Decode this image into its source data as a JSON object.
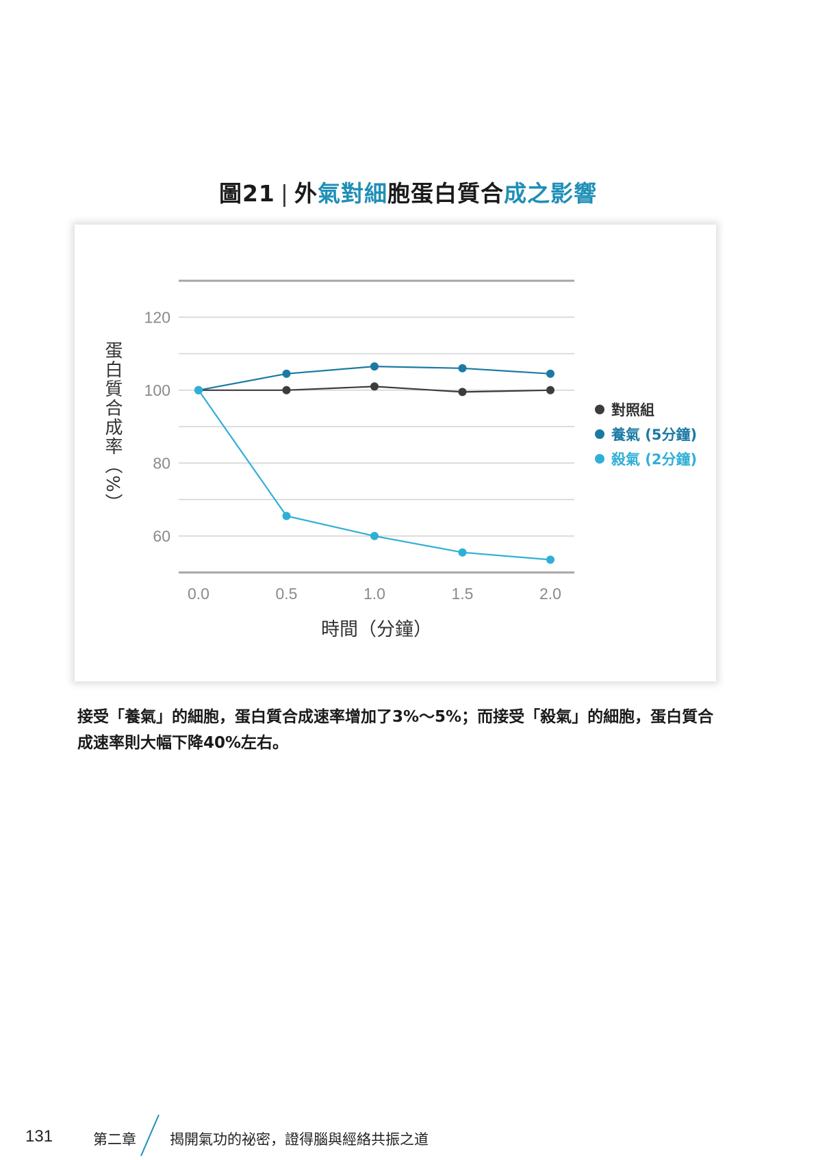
{
  "figure": {
    "title_prefix": "圖21",
    "title_sep": "|",
    "title_parts": [
      {
        "text": "外",
        "accent": false
      },
      {
        "text": "氣對細",
        "accent": true
      },
      {
        "text": "胞蛋白質合",
        "accent": false
      },
      {
        "text": "成之影響",
        "accent": true
      }
    ]
  },
  "chart_data": {
    "type": "line",
    "xlabel": "時間（分鐘）",
    "ylabel": "蛋白質合成率（%）",
    "x": [
      0.0,
      0.5,
      1.0,
      1.5,
      2.0
    ],
    "x_tick_labels": [
      "0.0",
      "0.5",
      "1.0",
      "1.5",
      "2.0"
    ],
    "y_ticks": [
      60,
      80,
      100,
      120
    ],
    "ylim": [
      50,
      130
    ],
    "grid": true,
    "legend_position": "right",
    "series": [
      {
        "name": "對照組",
        "color": "#3c3c3c",
        "values": [
          100,
          100,
          101,
          99.5,
          100
        ]
      },
      {
        "name": "養氣 (5分鐘)",
        "color": "#1a7aa3",
        "values": [
          100,
          104.5,
          106.5,
          106,
          104.5
        ]
      },
      {
        "name": "殺氣 (2分鐘)",
        "color": "#2fafd6",
        "values": [
          100,
          65.5,
          60,
          55.5,
          53.5
        ]
      }
    ]
  },
  "caption": "接受「養氣」的細胞，蛋白質合成速率增加了3%～5%；而接受「殺氣」的細胞，蛋白質合成速率則大幅下降40%左右。",
  "footer": {
    "page_number": "131",
    "chapter": "第二章",
    "book_title": "揭開氣功的祕密，證得腦與經絡共振之道",
    "accent_color": "#1f8fb6"
  }
}
